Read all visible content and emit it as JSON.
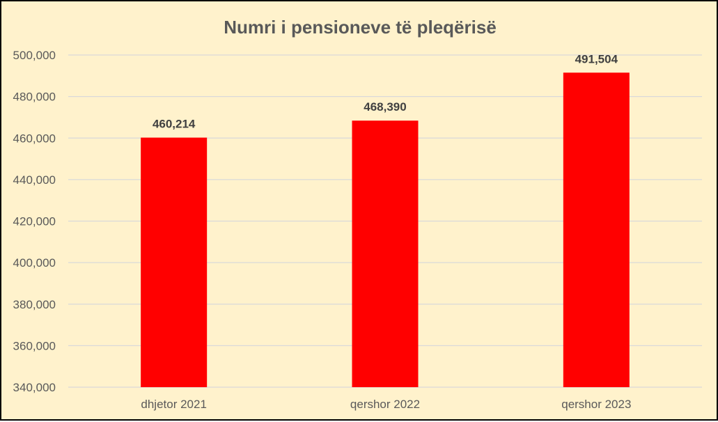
{
  "chart_data": {
    "type": "bar",
    "title": "Numri i pensioneve të pleqërisë",
    "categories": [
      "dhjetor 2021",
      "qershor 2022",
      "qershor 2023"
    ],
    "values": [
      460214,
      468390,
      491504
    ],
    "data_labels": [
      "460,214",
      "468,390",
      "491,504"
    ],
    "ylim": [
      340000,
      500000
    ],
    "y_ticks": [
      340000,
      360000,
      380000,
      400000,
      420000,
      440000,
      460000,
      480000,
      500000
    ],
    "y_tick_labels": [
      "340,000",
      "360,000",
      "380,000",
      "400,000",
      "420,000",
      "440,000",
      "460,000",
      "480,000",
      "500,000"
    ],
    "grid": true,
    "legend": "none",
    "colors": {
      "bar": "#ff0000",
      "background": "#fff2cc",
      "grid": "#d9d9d9",
      "text": "#595959"
    }
  }
}
